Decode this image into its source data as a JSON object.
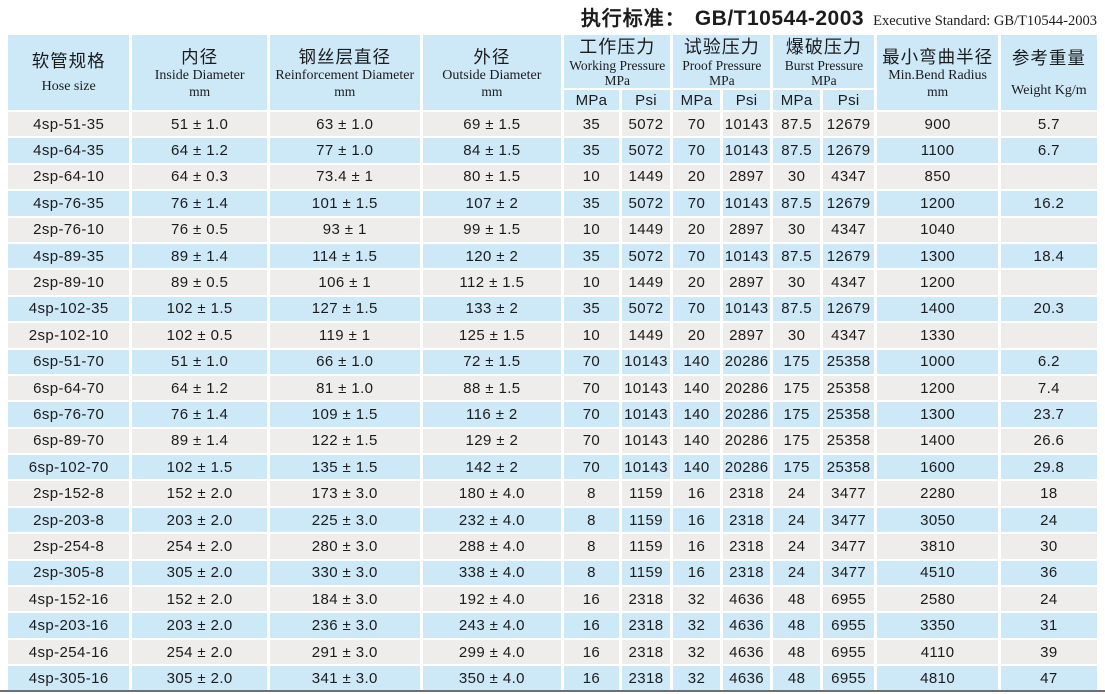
{
  "standard": {
    "label_zh": "执行标准：",
    "value": "GB/T10544-2003",
    "label_en": "Executive Standard: GB/T10544-2003"
  },
  "colors": {
    "header_blue": "#cde8f7",
    "row_blue": "#cde8f7",
    "row_gray": "#eeedeb",
    "text": "#1c1c1c",
    "bottom_rule": "#6f6f6f"
  },
  "table": {
    "header": {
      "hose_size": {
        "zh": "软管规格",
        "en": "Hose size"
      },
      "inside_diameter": {
        "zh": "内径",
        "en": "Inside Diameter",
        "unit": "mm"
      },
      "reinforcement_diameter": {
        "zh": "钢丝层直径",
        "en": "Reinforcement Diameter",
        "unit": "mm"
      },
      "outside_diameter": {
        "zh": "外径",
        "en": "Outside Diameter",
        "unit": "mm"
      },
      "working_pressure": {
        "zh": "工作压力",
        "en": "Working Pressure",
        "unit": "MPa",
        "sub": [
          "MPa",
          "Psi"
        ]
      },
      "proof_pressure": {
        "zh": "试验压力",
        "en": "Proof Pressure",
        "unit": "MPa",
        "sub": [
          "MPa",
          "Psi"
        ]
      },
      "burst_pressure": {
        "zh": "爆破压力",
        "en": "Burst Pressure",
        "unit": "MPa",
        "sub": [
          "MPa",
          "Psi"
        ]
      },
      "min_bend_radius": {
        "zh": "最小弯曲半径",
        "en": "Min.Bend Radius",
        "unit": "mm"
      },
      "weight": {
        "zh": "参考重量",
        "en": "Weight Kg/m"
      }
    },
    "rows": [
      [
        "4sp-51-35",
        "51 ± 1.0",
        "63 ± 1.0",
        "69 ± 1.5",
        "35",
        "5072",
        "70",
        "10143",
        "87.5",
        "12679",
        "900",
        "5.7"
      ],
      [
        "4sp-64-35",
        "64 ± 1.2",
        "77 ± 1.0",
        "84 ± 1.5",
        "35",
        "5072",
        "70",
        "10143",
        "87.5",
        "12679",
        "1100",
        "6.7"
      ],
      [
        "2sp-64-10",
        "64 ± 0.3",
        "73.4 ± 1",
        "80 ± 1.5",
        "10",
        "1449",
        "20",
        "2897",
        "30",
        "4347",
        "850",
        ""
      ],
      [
        "4sp-76-35",
        "76 ± 1.4",
        "101 ± 1.5",
        "107 ± 2",
        "35",
        "5072",
        "70",
        "10143",
        "87.5",
        "12679",
        "1200",
        "16.2"
      ],
      [
        "2sp-76-10",
        "76 ± 0.5",
        "93 ± 1",
        "99 ± 1.5",
        "10",
        "1449",
        "20",
        "2897",
        "30",
        "4347",
        "1040",
        ""
      ],
      [
        "4sp-89-35",
        "89 ± 1.4",
        "114 ± 1.5",
        "120 ± 2",
        "35",
        "5072",
        "70",
        "10143",
        "87.5",
        "12679",
        "1300",
        "18.4"
      ],
      [
        "2sp-89-10",
        "89 ± 0.5",
        "106 ± 1",
        "112 ± 1.5",
        "10",
        "1449",
        "20",
        "2897",
        "30",
        "4347",
        "1200",
        ""
      ],
      [
        "4sp-102-35",
        "102 ± 1.5",
        "127 ± 1.5",
        "133 ± 2",
        "35",
        "5072",
        "70",
        "10143",
        "87.5",
        "12679",
        "1400",
        "20.3"
      ],
      [
        "2sp-102-10",
        "102 ± 0.5",
        "119 ± 1",
        "125 ± 1.5",
        "10",
        "1449",
        "20",
        "2897",
        "30",
        "4347",
        "1330",
        ""
      ],
      [
        "6sp-51-70",
        "51 ± 1.0",
        "66 ± 1.0",
        "72 ± 1.5",
        "70",
        "10143",
        "140",
        "20286",
        "175",
        "25358",
        "1000",
        "6.2"
      ],
      [
        "6sp-64-70",
        "64 ± 1.2",
        "81 ± 1.0",
        "88 ± 1.5",
        "70",
        "10143",
        "140",
        "20286",
        "175",
        "25358",
        "1200",
        "7.4"
      ],
      [
        "6sp-76-70",
        "76 ± 1.4",
        "109 ± 1.5",
        "116 ± 2",
        "70",
        "10143",
        "140",
        "20286",
        "175",
        "25358",
        "1300",
        "23.7"
      ],
      [
        "6sp-89-70",
        "89 ± 1.4",
        "122 ± 1.5",
        "129 ± 2",
        "70",
        "10143",
        "140",
        "20286",
        "175",
        "25358",
        "1400",
        "26.6"
      ],
      [
        "6sp-102-70",
        "102 ± 1.5",
        "135 ± 1.5",
        "142 ± 2",
        "70",
        "10143",
        "140",
        "20286",
        "175",
        "25358",
        "1600",
        "29.8"
      ],
      [
        "2sp-152-8",
        "152 ± 2.0",
        "173 ± 3.0",
        "180 ± 4.0",
        "8",
        "1159",
        "16",
        "2318",
        "24",
        "3477",
        "2280",
        "18"
      ],
      [
        "2sp-203-8",
        "203 ± 2.0",
        "225 ± 3.0",
        "232 ± 4.0",
        "8",
        "1159",
        "16",
        "2318",
        "24",
        "3477",
        "3050",
        "24"
      ],
      [
        "2sp-254-8",
        "254 ± 2.0",
        "280 ± 3.0",
        "288 ± 4.0",
        "8",
        "1159",
        "16",
        "2318",
        "24",
        "3477",
        "3810",
        "30"
      ],
      [
        "2sp-305-8",
        "305 ± 2.0",
        "330 ± 3.0",
        "338 ± 4.0",
        "8",
        "1159",
        "16",
        "2318",
        "24",
        "3477",
        "4510",
        "36"
      ],
      [
        "4sp-152-16",
        "152 ± 2.0",
        "184 ± 3.0",
        "192 ± 4.0",
        "16",
        "2318",
        "32",
        "4636",
        "48",
        "6955",
        "2580",
        "24"
      ],
      [
        "4sp-203-16",
        "203 ± 2.0",
        "236 ± 3.0",
        "243 ± 4.0",
        "16",
        "2318",
        "32",
        "4636",
        "48",
        "6955",
        "3350",
        "31"
      ],
      [
        "4sp-254-16",
        "254 ± 2.0",
        "291 ± 3.0",
        "299 ± 4.0",
        "16",
        "2318",
        "32",
        "4636",
        "48",
        "6955",
        "4110",
        "39"
      ],
      [
        "4sp-305-16",
        "305 ± 2.0",
        "341 ± 3.0",
        "350 ± 4.0",
        "16",
        "2318",
        "32",
        "4636",
        "48",
        "6955",
        "4810",
        "47"
      ]
    ]
  }
}
